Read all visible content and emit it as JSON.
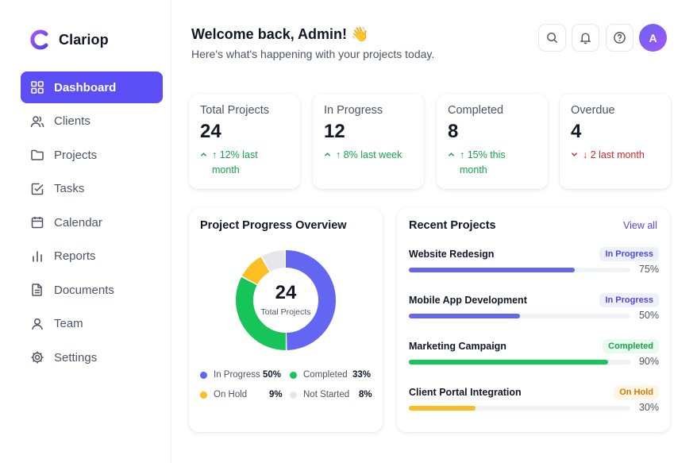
{
  "brand": {
    "name": "Clariop"
  },
  "sidebar": {
    "items": [
      {
        "label": "Dashboard",
        "icon": "grid-icon",
        "active": true
      },
      {
        "label": "Clients",
        "icon": "users-icon"
      },
      {
        "label": "Projects",
        "icon": "folder-icon"
      },
      {
        "label": "Tasks",
        "icon": "check-square-icon"
      },
      {
        "label": "Calendar",
        "icon": "calendar-icon"
      },
      {
        "label": "Reports",
        "icon": "bar-chart-icon"
      },
      {
        "label": "Documents",
        "icon": "document-icon"
      },
      {
        "label": "Team",
        "icon": "user-icon"
      },
      {
        "label": "Settings",
        "icon": "gear-icon"
      }
    ]
  },
  "header": {
    "welcome": "Welcome back, Admin! 👋",
    "subtitle": "Here's what's happening with your projects today.",
    "avatar_initial": "A"
  },
  "stats": [
    {
      "title": "Total Projects",
      "value": "24",
      "trend_line1": "↑ 12% last",
      "trend_line2": "month",
      "direction": "up"
    },
    {
      "title": "In Progress",
      "value": "12",
      "trend_line1": "↑ 8% last week",
      "trend_line2": "",
      "direction": "up"
    },
    {
      "title": "Completed",
      "value": "8",
      "trend_line1": "↑ 15% this",
      "trend_line2": "month",
      "direction": "up"
    },
    {
      "title": "Overdue",
      "value": "4",
      "trend_line1": "↓ 2 last month",
      "trend_line2": "",
      "direction": "down"
    }
  ],
  "progress_overview": {
    "title": "Project Progress Overview",
    "center_value": "24",
    "center_label": "Total Projects"
  },
  "chart_data": {
    "type": "pie",
    "title": "Project Progress Overview",
    "categories": [
      "In Progress",
      "Completed",
      "On Hold",
      "Not Started"
    ],
    "values": [
      50,
      33,
      9,
      8
    ],
    "value_labels": [
      "50%",
      "33%",
      "9%",
      "8%"
    ],
    "colors": [
      "#6366f1",
      "#16c45a",
      "#fbbf24",
      "#e5e7eb"
    ]
  },
  "recent": {
    "title": "Recent Projects",
    "view_all": "View all",
    "projects": [
      {
        "name": "Website Redesign",
        "status": "In Progress",
        "progress": 75,
        "progress_label": "75%",
        "color": "#6366f1",
        "badge_bg": "#eef0ff",
        "badge_fg": "#4f46e5"
      },
      {
        "name": "Mobile App Development",
        "status": "In Progress",
        "progress": 50,
        "progress_label": "50%",
        "color": "#6366f1",
        "badge_bg": "#eef0ff",
        "badge_fg": "#4f46e5"
      },
      {
        "name": "Marketing Campaign",
        "status": "Completed",
        "progress": 90,
        "progress_label": "90%",
        "color": "#16c45a",
        "badge_bg": "#e8f9ee",
        "badge_fg": "#16a34a"
      },
      {
        "name": "Client Portal Integration",
        "status": "On Hold",
        "progress": 30,
        "progress_label": "30%",
        "color": "#fbbf24",
        "badge_bg": "#fef6e4",
        "badge_fg": "#d97706"
      }
    ]
  },
  "colors": {
    "accent": "#5b4ef5",
    "up": "#16a34a",
    "down": "#dc2626"
  }
}
